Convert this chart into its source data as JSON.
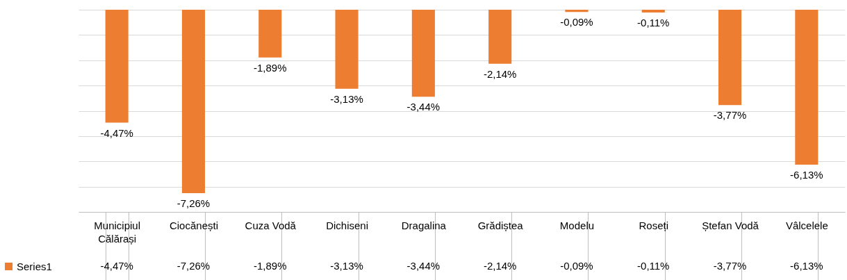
{
  "chart_data": {
    "type": "bar",
    "categories": [
      "Municipiul Călărași",
      "Ciocănești",
      "Cuza Vodă",
      "Dichiseni",
      "Dragalina",
      "Grădiștea",
      "Modelu",
      "Roseți",
      "Ștefan Vodă",
      "Vâlcelele"
    ],
    "series": [
      {
        "name": "Series1",
        "color": "#ed7d31",
        "values": [
          -4.47,
          -7.26,
          -1.89,
          -3.13,
          -3.44,
          -2.14,
          -0.09,
          -0.11,
          -3.77,
          -6.13
        ],
        "value_labels": [
          "-4,47%",
          "-7,26%",
          "-1,89%",
          "-3,13%",
          "-3,44%",
          "-2,14%",
          "-0,09%",
          "-0,11%",
          "-3,77%",
          "-6,13%"
        ]
      }
    ],
    "ylim": [
      -8,
      0
    ],
    "grid": "y",
    "tick_labels": "x",
    "legend": "bottom left"
  }
}
